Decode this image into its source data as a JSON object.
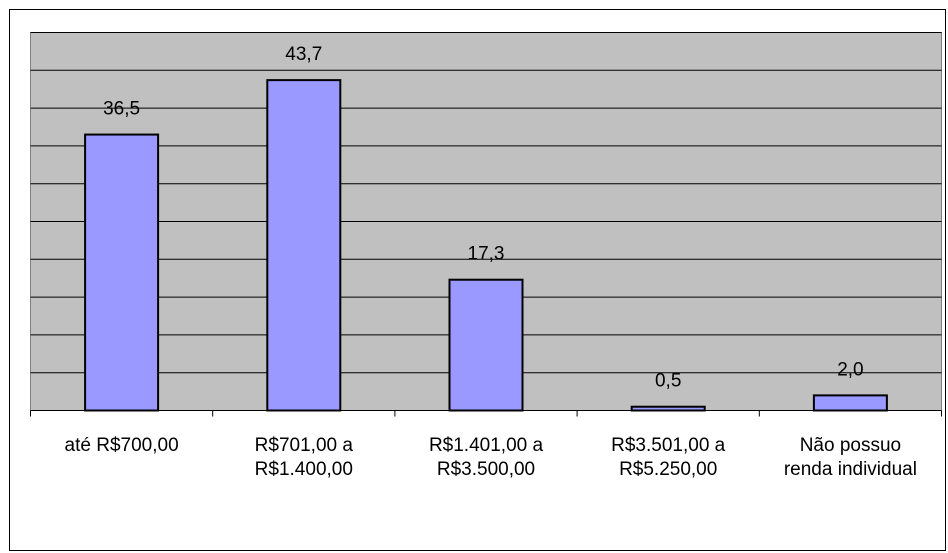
{
  "chart_data": {
    "type": "bar",
    "categories": [
      "até R$700,00",
      "R$701,00 a R$1.400,00",
      "R$1.401,00 a R$3.500,00",
      "R$3.501,00 a R$5.250,00",
      "Não possuo renda individual"
    ],
    "values": [
      36.5,
      43.7,
      17.3,
      0.5,
      2.0
    ],
    "value_labels": [
      "36,5",
      "43,7",
      "17,3",
      "0,5",
      "2,0"
    ],
    "color": "#9999ff",
    "ylim": [
      0,
      50
    ],
    "yticks": [
      0,
      5,
      10,
      15,
      20,
      25,
      30,
      35,
      40,
      45,
      50
    ],
    "grid": true
  }
}
